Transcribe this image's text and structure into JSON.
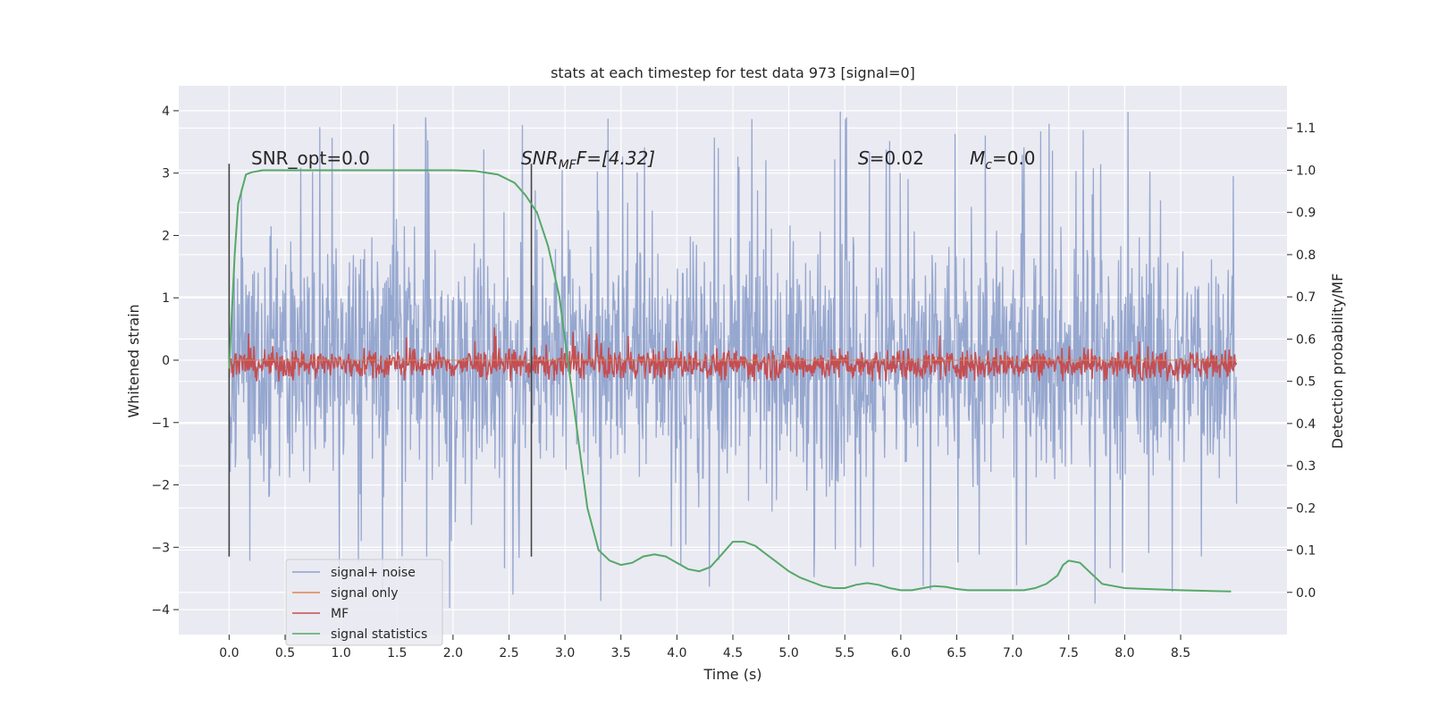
{
  "chart_data": {
    "type": "line",
    "title": "stats at each timestep for test data 973 [signal=0]",
    "xlabel": "Time (s)",
    "ylabel": "Whitened strain",
    "ylabel_right": "Detection probability/MF",
    "xlim": [
      -0.45,
      9.45
    ],
    "ylim": [
      -4.4,
      4.4
    ],
    "ylim_right": [
      -0.1,
      1.2
    ],
    "x_ticks": [
      0.0,
      0.5,
      1.0,
      1.5,
      2.0,
      2.5,
      3.0,
      3.5,
      4.0,
      4.5,
      5.0,
      5.5,
      6.0,
      6.5,
      7.0,
      7.5,
      8.0,
      8.5
    ],
    "x_tick_labels": [
      "0.0",
      "0.5",
      "1.0",
      "1.5",
      "2.0",
      "2.5",
      "3.0",
      "3.5",
      "4.0",
      "4.5",
      "5.0",
      "5.5",
      "6.0",
      "6.5",
      "7.0",
      "7.5",
      "8.0",
      "8.5"
    ],
    "y_ticks": [
      -4,
      -3,
      -2,
      -1,
      0,
      1,
      2,
      3,
      4
    ],
    "y_tick_labels": [
      "−4",
      "−3",
      "−2",
      "−1",
      "0",
      "1",
      "2",
      "3",
      "4"
    ],
    "y_ticks_right": [
      0.0,
      0.1,
      0.2,
      0.3,
      0.4,
      0.5,
      0.6,
      0.7,
      0.8,
      0.9,
      1.0,
      1.1
    ],
    "y_tick_labels_right": [
      "0.0",
      "0.1",
      "0.2",
      "0.3",
      "0.4",
      "0.5",
      "0.6",
      "0.7",
      "0.8",
      "0.9",
      "1.0",
      "1.1"
    ],
    "series": [
      {
        "name": "signal+ noise",
        "axis": "left",
        "color": "#8da0cb",
        "description": "dense noise trace, roughly uniform band between about -2.7 and +2.7 with spikes to +4.0 and -4.0",
        "x": [
          0.0,
          9.0
        ],
        "envelope_low": [
          -2.7,
          -2.7
        ],
        "envelope_high": [
          2.7,
          2.7
        ],
        "spike_max": 4.0,
        "spike_min": -4.0
      },
      {
        "name": "signal only",
        "axis": "left",
        "color": "#dd8452",
        "x": [
          0.0,
          9.0
        ],
        "values": [
          0.0,
          0.0
        ]
      },
      {
        "name": "MF",
        "axis": "right",
        "color": "#c44e52",
        "description": "noisy trace centered near 0.54 with range roughly 0.50 to 0.63",
        "x": [
          0.0,
          9.0
        ],
        "center": 0.54,
        "band_low": 0.5,
        "band_high": 0.63
      },
      {
        "name": "signal statistics",
        "axis": "right",
        "color": "#55a868",
        "x": [
          0.0,
          0.05,
          0.08,
          0.12,
          0.15,
          0.2,
          0.3,
          0.5,
          1.0,
          1.5,
          2.0,
          2.2,
          2.4,
          2.55,
          2.65,
          2.75,
          2.85,
          2.95,
          3.05,
          3.1,
          3.2,
          3.3,
          3.4,
          3.5,
          3.6,
          3.7,
          3.8,
          3.9,
          4.0,
          4.1,
          4.2,
          4.3,
          4.4,
          4.5,
          4.6,
          4.7,
          4.8,
          4.9,
          5.0,
          5.1,
          5.2,
          5.3,
          5.4,
          5.5,
          5.6,
          5.7,
          5.8,
          5.9,
          6.0,
          6.1,
          6.2,
          6.3,
          6.4,
          6.5,
          6.6,
          6.8,
          7.0,
          7.1,
          7.2,
          7.3,
          7.4,
          7.45,
          7.5,
          7.6,
          7.7,
          7.8,
          8.0,
          8.2,
          8.5,
          8.8,
          8.95
        ],
        "values": [
          0.53,
          0.8,
          0.92,
          0.96,
          0.99,
          0.995,
          1.0,
          1.0,
          1.0,
          1.0,
          1.0,
          0.998,
          0.99,
          0.97,
          0.94,
          0.9,
          0.82,
          0.7,
          0.5,
          0.4,
          0.2,
          0.1,
          0.075,
          0.065,
          0.07,
          0.085,
          0.09,
          0.085,
          0.07,
          0.055,
          0.05,
          0.06,
          0.09,
          0.12,
          0.12,
          0.11,
          0.09,
          0.07,
          0.05,
          0.035,
          0.025,
          0.015,
          0.01,
          0.01,
          0.018,
          0.022,
          0.018,
          0.01,
          0.005,
          0.005,
          0.01,
          0.015,
          0.013,
          0.008,
          0.005,
          0.005,
          0.005,
          0.005,
          0.01,
          0.02,
          0.04,
          0.065,
          0.075,
          0.07,
          0.045,
          0.02,
          0.01,
          0.008,
          0.005,
          0.003,
          0.002
        ]
      }
    ],
    "vlines": [
      0.0,
      2.7
    ],
    "annotations": [
      {
        "text": "SNR_opt=0.0",
        "x": 0.2,
        "y": 3.0
      },
      {
        "text_parts": [
          "SNR",
          "MF",
          "F=[4.32]"
        ],
        "x": 2.6,
        "y": 3.0
      },
      {
        "text_parts": [
          "S",
          "=0.02"
        ],
        "x": 5.6,
        "y": 3.0
      },
      {
        "text_parts": [
          "M",
          "c",
          "=0.0"
        ],
        "x": 6.6,
        "y": 3.0
      }
    ],
    "legend": {
      "placement": "lower-left",
      "entries": [
        "signal+ noise",
        "signal only",
        "MF",
        "signal statistics"
      ]
    },
    "grid": true,
    "background": "#eaeaf2"
  }
}
